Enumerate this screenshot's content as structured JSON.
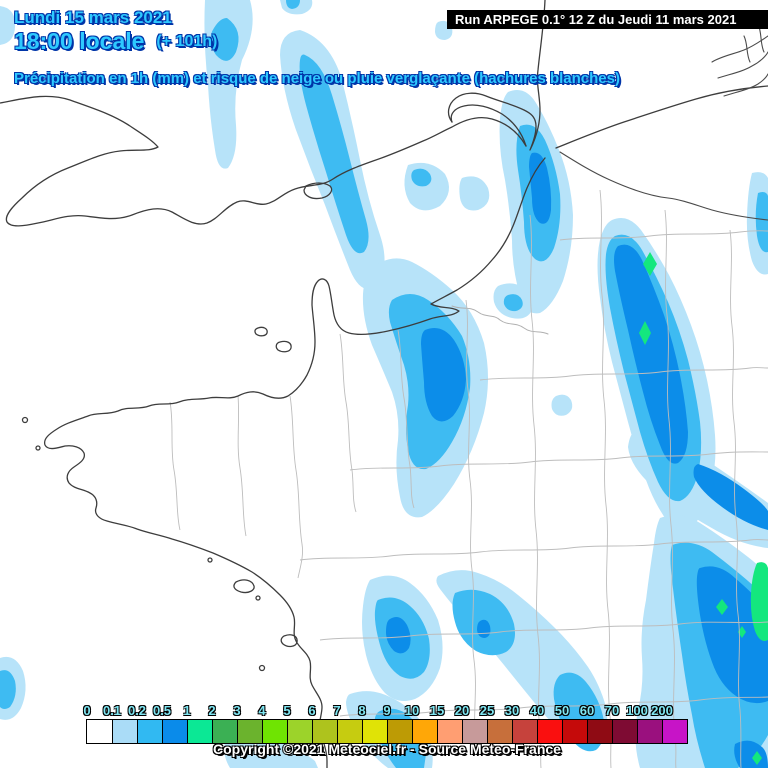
{
  "header": {
    "date_line": "Lundi 15 mars 2021",
    "time_line": "18:00 locale",
    "offset_label": "(+ 101h)",
    "subtitle": "Précipitation en 1h (mm) et risque de neige ou pluie verglaçante (hachures blanches)",
    "text_color": "#2EC9FF",
    "outline_color": "#0035A8"
  },
  "run_info": {
    "label": "Run ARPEGE 0.1° 12 Z du Jeudi 11 mars 2021",
    "background": "#000000",
    "text_color": "#FFFFFF"
  },
  "legend": {
    "unit": "mm",
    "label_color": "#7FE6F2",
    "copyright": "Copyright ©2021 Meteociel.fr - Source Meteo-France",
    "stops": [
      {
        "label": "0",
        "color": "#FFFFFF"
      },
      {
        "label": "0.1",
        "color": "#AADCF7"
      },
      {
        "label": "0.2",
        "color": "#31B9F2"
      },
      {
        "label": "0.5",
        "color": "#0A8BEA"
      },
      {
        "label": "1",
        "color": "#0BE895"
      },
      {
        "label": "2",
        "color": "#3BB054"
      },
      {
        "label": "3",
        "color": "#6BB32D"
      },
      {
        "label": "4",
        "color": "#6FE402"
      },
      {
        "label": "5",
        "color": "#9CD32A"
      },
      {
        "label": "6",
        "color": "#AEC31D"
      },
      {
        "label": "7",
        "color": "#C6CC10"
      },
      {
        "label": "8",
        "color": "#E0E306"
      },
      {
        "label": "9",
        "color": "#BD9B05"
      },
      {
        "label": "10",
        "color": "#FFA707"
      },
      {
        "label": "15",
        "color": "#FF9E72"
      },
      {
        "label": "20",
        "color": "#C79A9A"
      },
      {
        "label": "25",
        "color": "#C76F3B"
      },
      {
        "label": "30",
        "color": "#C6423C"
      },
      {
        "label": "40",
        "color": "#FA0F0F"
      },
      {
        "label": "50",
        "color": "#C50A0A"
      },
      {
        "label": "60",
        "color": "#8F0B14"
      },
      {
        "label": "70",
        "color": "#7E0B33"
      },
      {
        "label": "100",
        "color": "#9A107E"
      },
      {
        "label": "200",
        "color": "#C714C7"
      }
    ]
  },
  "map": {
    "background": "#FFFFFF",
    "precip_levels": [
      {
        "key": "light",
        "range": "0.1-0.2 mm",
        "color": "#B7E3F9"
      },
      {
        "key": "medium",
        "range": "0.2-0.5 mm",
        "color": "#3EBBF2"
      },
      {
        "key": "dark",
        "range": "0.5-1 mm",
        "color": "#0C8DE9"
      },
      {
        "key": "green",
        "range": "1-2 mm",
        "color": "#14E77E"
      }
    ],
    "line_colors": {
      "coast": "#3D3D3D",
      "department": "#BDBDBD",
      "country_border": "#4A4A4A",
      "river": "#B0B0B0"
    }
  }
}
